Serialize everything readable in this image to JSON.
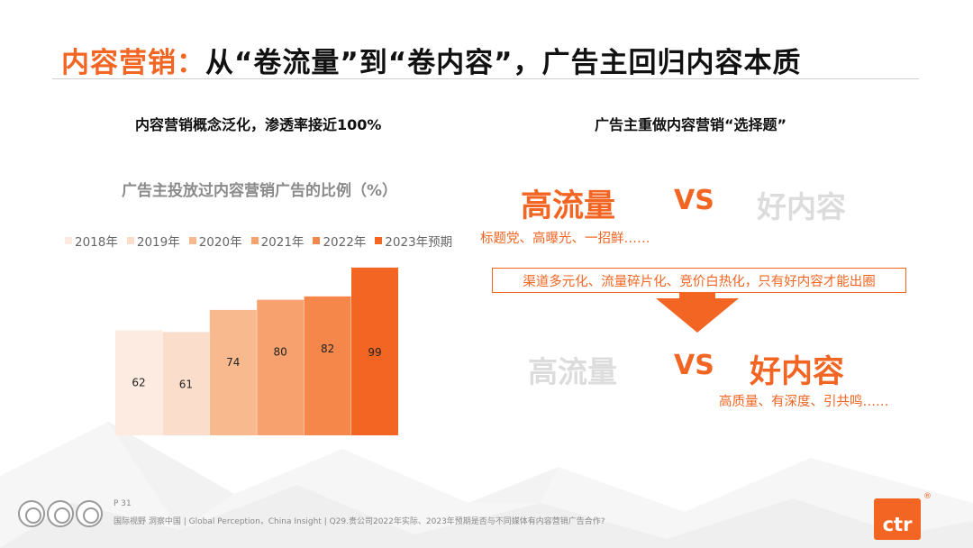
{
  "slide": {
    "title_accent": "内容营销：",
    "title_rest": "从“卷流量”到“卷内容”，广告主回归内容本质"
  },
  "left": {
    "subtitle": "内容营销概念泛化，渗透率接近100%"
  },
  "chart_data": {
    "type": "bar",
    "title": "广告主投放过内容营销广告的比例（%）",
    "categories": [
      "2018年",
      "2019年",
      "2020年",
      "2021年",
      "2022年",
      "2023年预期"
    ],
    "values": [
      62,
      61,
      74,
      80,
      82,
      99
    ],
    "colors": [
      "#FDEBE1",
      "#FBDDCB",
      "#F8B98F",
      "#F7A26E",
      "#F5874A",
      "#F26522"
    ],
    "legend_position": "top",
    "xlabel": "",
    "ylabel": "",
    "grid": false
  },
  "right": {
    "subtitle": "广告主重做内容营销“选择题”",
    "top_left": "高流量",
    "vs": "VS",
    "top_right": "好内容",
    "top_note": "标题党、高曝光、一招鲜……",
    "middle_box": "渠道多元化、流量碎片化、竞价白热化，只有好内容才能出圈",
    "bottom_left": "高流量",
    "bottom_right": "好内容",
    "bottom_note": "高质量、有深度、引共鸣……"
  },
  "footer": {
    "page": "P 31",
    "text": "国际视野  洞察中国 |  Global Perception，China Insight  |  Q29.贵公司2022年实际、2023年预期是否与不同媒体有内容营销广告合作?",
    "logo": "ctr",
    "reg": "®",
    "cert_icons": [
      "sgs-cert-icon",
      "sgs-cert-icon",
      "sgs-cert-icon"
    ]
  },
  "colors": {
    "accent": "#F26522",
    "muted": "#dcdcdc"
  }
}
